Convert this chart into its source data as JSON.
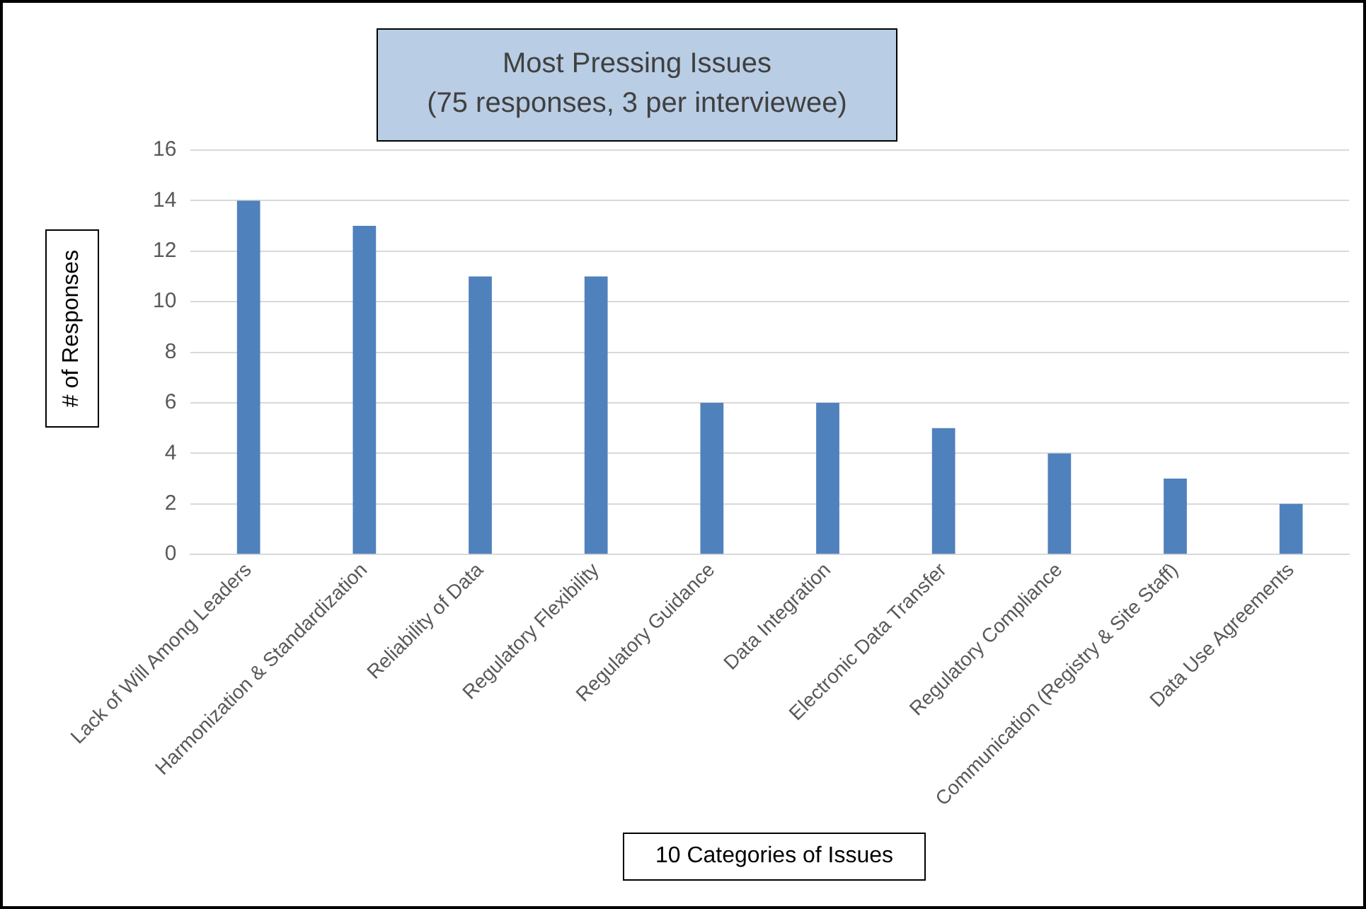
{
  "chart_data": {
    "type": "bar",
    "title": "Most Pressing Issues\n(75 responses, 3 per interviewee)",
    "xlabel": "10 Categories of Issues",
    "ylabel": "# of Responses",
    "categories": [
      "Lack of Will Among Leaders",
      "Harmonization & Standardization",
      "Reliability of Data",
      "Regulatory Flexibility",
      "Regulatory Guidance",
      "Data Integration",
      "Electronic Data Transfer",
      "Regulatory Compliance",
      "Communication (Registry & Site Staff)",
      "Data Use Agreements"
    ],
    "values": [
      14,
      13,
      11,
      11,
      6,
      6,
      5,
      4,
      3,
      2
    ],
    "color": "#4f81bd",
    "ylim": [
      0,
      16
    ],
    "yticks": [
      0,
      2,
      4,
      6,
      8,
      10,
      12,
      14,
      16
    ],
    "grid": "y"
  }
}
